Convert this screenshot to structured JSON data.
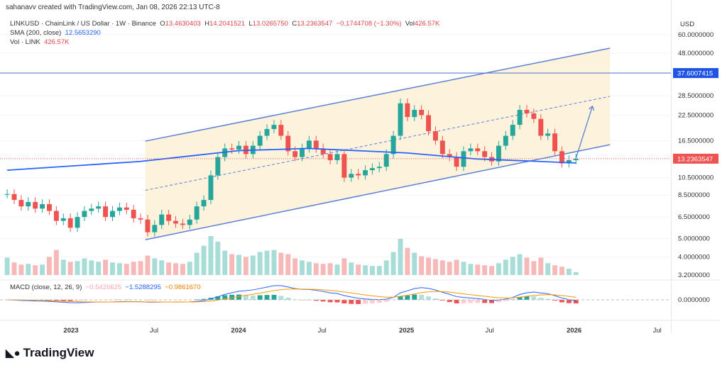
{
  "credit": "sahanavv created with TradingView.com, Jan 08, 2026 22:13 UTC-8",
  "legend": {
    "symbol": "LINKUSD · ChainLink / US Dollar · 1W · Binance",
    "o_label": "O",
    "o": "13.4630403",
    "h_label": "H",
    "h": "14.2041521",
    "l_label": "L",
    "l": "13.0265750",
    "c_label": "C",
    "c": "13.2363547",
    "change": "−0.1744708 (−1.30%)",
    "vol_label": "Vol",
    "vol": "426.57K",
    "sma_label": "SMA (200, close)",
    "sma": "12.5653290",
    "vol_line_label": "Vol · LINK",
    "vol_line": "426.57K",
    "macd_label": "MACD (close, 12, 26, 9)",
    "macd_hist": "−0.5426625",
    "macd_line": "−1.5288295",
    "macd_signal": "−0.9861670"
  },
  "logo": "TradingView",
  "colors": {
    "up": "#26a69a",
    "down": "#ef5350",
    "sma": "#2962ff",
    "channel": "#5b7fd6",
    "channel_fill": "#fdf3dc",
    "macd": "#2962ff",
    "signal": "#ff9800"
  },
  "chart_data": {
    "type": "candlestick",
    "currency": "USD",
    "scale": "log",
    "ylim": [
      3.2,
      60
    ],
    "y_ticks": [
      "60.0000000",
      "48.0000000",
      "28.5000000",
      "22.5000000",
      "16.5000000",
      "10.5000000",
      "8.5000000",
      "6.5000000",
      "5.0000000",
      "4.0000000",
      "3.2000000"
    ],
    "x_ticks": [
      "2023",
      "Jul",
      "2024",
      "Jul",
      "2025",
      "Jul",
      "2026",
      "Jul"
    ],
    "macd_ticks": [
      "0.0000000"
    ],
    "last_price": "13.2363547",
    "hline_label": "37.6007415",
    "start": "2022-08-15",
    "end": "2026-01-05",
    "closes": [
      8.6,
      8.0,
      7.4,
      7.8,
      7.2,
      7.6,
      7.0,
      6.2,
      6.4,
      5.7,
      6.5,
      7.0,
      7.2,
      7.4,
      6.5,
      7.0,
      7.3,
      7.1,
      6.4,
      6.3,
      5.4,
      5.9,
      6.7,
      6.2,
      6.0,
      5.9,
      6.3,
      7.4,
      8.0,
      10.8,
      13.5,
      15.0,
      14.8,
      15.5,
      14.0,
      15.5,
      17.5,
      19.0,
      20.0,
      17.5,
      14.5,
      13.5,
      15.0,
      16.5,
      15.0,
      14.0,
      13.0,
      14.0,
      10.5,
      11.0,
      10.8,
      11.5,
      11.8,
      12.0,
      14.0,
      17.5,
      26.0,
      22.0,
      24.0,
      22.5,
      18.5,
      16.5,
      14.0,
      13.5,
      12.0,
      14.5,
      15.0,
      14.5,
      13.5,
      12.8,
      15.5,
      17.5,
      20.0,
      24.0,
      23.0,
      21.5,
      17.5,
      18.0,
      14.5,
      12.5,
      13.0,
      13.24
    ],
    "volumes_k": [
      2500,
      1800,
      1500,
      1600,
      1400,
      1500,
      2600,
      3600,
      2200,
      1900,
      2000,
      2400,
      2100,
      1900,
      2200,
      1800,
      1700,
      1600,
      1900,
      2000,
      2800,
      2400,
      2100,
      1800,
      1700,
      1600,
      1900,
      3200,
      4200,
      5600,
      4800,
      3500,
      3000,
      2900,
      2600,
      2800,
      3300,
      3500,
      3600,
      3200,
      3000,
      2400,
      2100,
      1900,
      1700,
      1600,
      1700,
      1500,
      2400,
      1800,
      1500,
      1400,
      1300,
      1300,
      2100,
      3300,
      5200,
      3900,
      3200,
      2700,
      2500,
      2300,
      2100,
      1900,
      2200,
      1900,
      1600,
      1500,
      1400,
      1300,
      1700,
      2200,
      2600,
      3000,
      2500,
      2000,
      2500,
      1700,
      1400,
      1200,
      900,
      426.57
    ],
    "sma_points": [
      [
        "2022-08-15",
        11.5
      ],
      [
        "2023-06-01",
        12.8
      ],
      [
        "2024-01-01",
        14.6
      ],
      [
        "2024-06-01",
        15.0
      ],
      [
        "2025-01-01",
        14.2
      ],
      [
        "2025-06-01",
        13.2
      ],
      [
        "2026-01-05",
        12.57
      ]
    ],
    "channel": {
      "start": "2023-06-12",
      "end": "2026-03-20",
      "upper": [
        16.4,
        50.9
      ],
      "middle": [
        9.0,
        28.3
      ],
      "lower": [
        4.93,
        15.7
      ]
    },
    "hline": 37.6007415,
    "arrow": [
      [
        "2026-01-05",
        13.3
      ],
      [
        "2026-02-10",
        25.1
      ]
    ]
  }
}
